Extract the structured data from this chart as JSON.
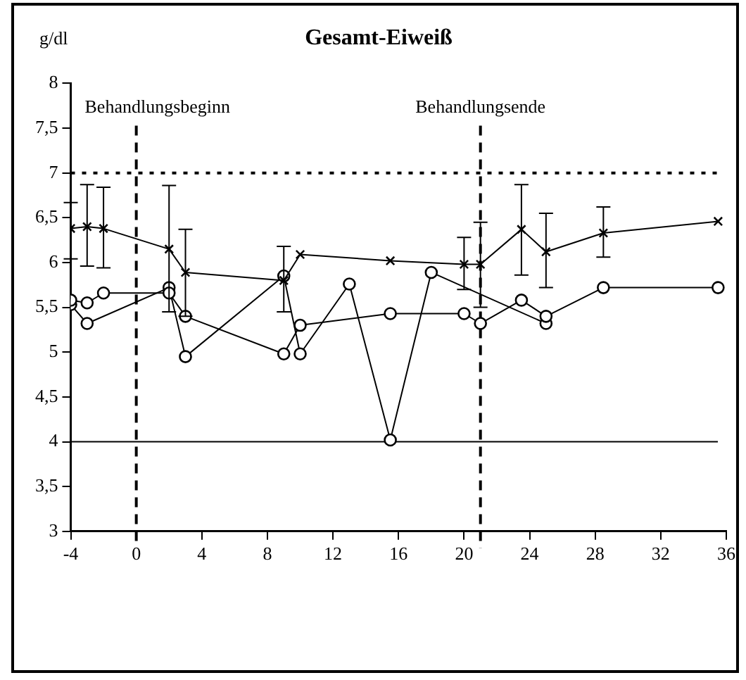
{
  "chart_data": {
    "type": "line",
    "title": "Gesamt-Eiweiß",
    "ylabel": "g/dl",
    "xlim": [
      -4,
      36
    ],
    "xticks": [
      -4,
      0,
      4,
      8,
      12,
      16,
      20,
      24,
      28,
      32,
      36
    ],
    "ylim": [
      3,
      8
    ],
    "yticks": [
      3,
      {
        "value": 3.5,
        "label": "3,5"
      },
      4,
      {
        "value": 4.5,
        "label": "4,5"
      },
      5,
      {
        "value": 5.5,
        "label": "5,5"
      },
      6,
      {
        "value": 6.5,
        "label": "6,5"
      },
      7,
      {
        "value": 7.5,
        "label": "7,5"
      },
      8
    ],
    "grid": false,
    "legend": false,
    "series": [
      {
        "color": "#000000",
        "marker": "cross",
        "x": [
          -4,
          -3,
          -2,
          2,
          3,
          9,
          10,
          15.5,
          20,
          21,
          23.5,
          25,
          28.5,
          35.5
        ],
        "values": [
          6.38,
          6.4,
          6.38,
          6.15,
          5.89,
          5.8,
          6.09,
          6.02,
          5.98,
          5.98,
          6.37,
          6.12,
          6.33,
          6.46
        ],
        "errors": [
          [
            6.04,
            6.67
          ],
          [
            5.96,
            6.87
          ],
          [
            5.94,
            6.84
          ],
          [
            5.45,
            6.86
          ],
          [
            5.4,
            6.37
          ],
          [
            5.45,
            6.18
          ],
          null,
          null,
          [
            5.7,
            6.28
          ],
          [
            5.5,
            6.45
          ],
          [
            5.86,
            6.87
          ],
          [
            5.72,
            6.55
          ],
          [
            6.06,
            6.62
          ],
          null
        ]
      },
      {
        "color": "#000000",
        "marker": "circle",
        "x": [
          -4,
          -3,
          -2,
          2,
          3,
          9,
          10,
          15.5,
          20,
          21,
          23.5,
          25,
          28.5,
          35.5
        ],
        "values": [
          5.58,
          5.55,
          5.66,
          5.66,
          5.4,
          4.98,
          5.3,
          5.43,
          5.43,
          5.32,
          5.58,
          5.4,
          5.72,
          5.72
        ]
      },
      {
        "color": "#000000",
        "marker": "circle",
        "x": [
          -4,
          -3,
          2,
          3,
          9,
          10,
          13,
          15.5,
          18,
          25
        ],
        "values": [
          5.53,
          5.32,
          5.72,
          4.95,
          5.85,
          4.98,
          5.76,
          4.02,
          5.89,
          5.32
        ]
      }
    ],
    "ref_lines": [
      {
        "axis": "x",
        "value": 0,
        "label": "Behandlungsbeginn",
        "line_style": "dashed",
        "color": "#000000"
      },
      {
        "axis": "x",
        "value": 21,
        "label": "Behandlungsende",
        "line_style": "dashed",
        "color": "#000000"
      },
      {
        "axis": "y",
        "value": 7,
        "line_style": "dotted",
        "color": "#000000"
      },
      {
        "axis": "y",
        "value": 4,
        "line_style": "solid",
        "color": "#000000"
      }
    ]
  }
}
